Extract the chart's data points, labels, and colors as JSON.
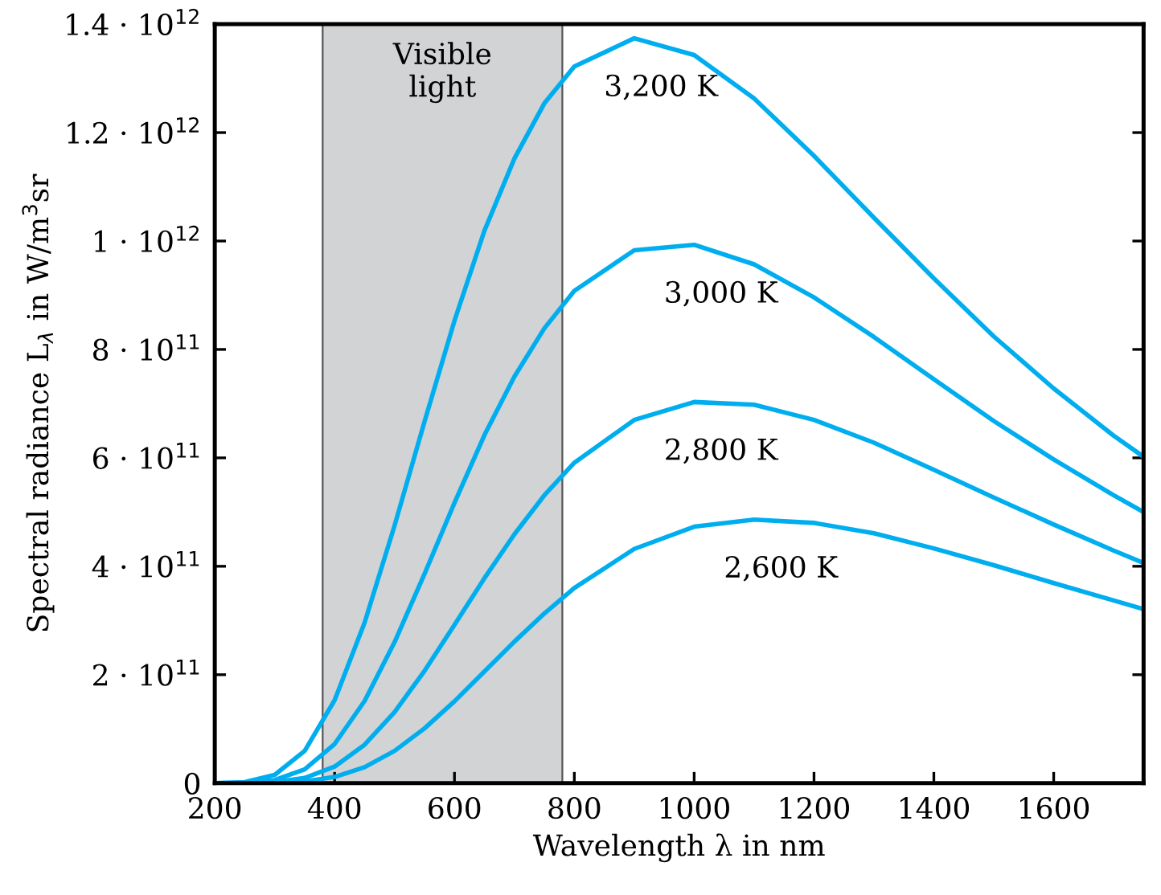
{
  "chart_data": {
    "type": "line",
    "xlabel": "Wavelength λ in nm",
    "ylabel": "Spectral radiance L$_{λ}$ in W/m$^{3}$sr",
    "x": [
      200,
      250,
      300,
      350,
      400,
      450,
      500,
      550,
      600,
      650,
      700,
      750,
      800,
      900,
      1000,
      1100,
      1200,
      1300,
      1400,
      1500,
      1600,
      1700,
      1750
    ],
    "series": [
      {
        "name": "3,200 K",
        "color": "#00aeef",
        "values": [
          0,
          1900000000.0,
          15200000000.0,
          59500000000.0,
          153000000000.0,
          296000000000.0,
          475000000000.0,
          667000000000.0,
          853000000000.0,
          1019000000000.0,
          1152000000000.0,
          1254000000000.0,
          1322000000000.0,
          1374000000000.0,
          1343000000000.0,
          1263000000000.0,
          1157000000000.0,
          1043000000000.0,
          931000000000.0,
          824000000000.0,
          728000000000.0,
          641000000000.0,
          602000000000.0
        ]
      },
      {
        "name": "3,000 K",
        "color": "#00aeef",
        "values": [
          0,
          600000000.0,
          5600000000.0,
          25500000000.0,
          72200000000.0,
          151500000000.0,
          260000000000.0,
          386000000000.0,
          517000000000.0,
          642000000000.0,
          750000000000.0,
          839000000000.0,
          908000000000.0,
          983000000000.0,
          993000000000.0,
          957000000000.0,
          896000000000.0,
          823000000000.0,
          745000000000.0,
          668000000000.0,
          597000000000.0,
          531000000000.0,
          500000000000.0
        ]
      },
      {
        "name": "2,800 K",
        "color": "#00aeef",
        "values": [
          0,
          0,
          1800000000.0,
          9500000000.0,
          30500000000.0,
          70900000000.0,
          131000000000.0,
          207000000000.0,
          292000000000.0,
          378000000000.0,
          459000000000.0,
          531000000000.0,
          591000000000.0,
          670000000000.0,
          703000000000.0,
          698000000000.0,
          670000000000.0,
          628000000000.0,
          578000000000.0,
          527000000000.0,
          477000000000.0,
          429000000000.0,
          406000000000.0
        ]
      },
      {
        "name": "2,600 K",
        "color": "#00aeef",
        "values": [
          0,
          0,
          500000000.0,
          3100000000.0,
          11400000000.0,
          29500000000.0,
          59500000000.0,
          101000000000.0,
          151000000000.0,
          206000000000.0,
          261000000000.0,
          313000000000.0,
          360000000000.0,
          432000000000.0,
          473000000000.0,
          486000000000.0,
          480000000000.0,
          461000000000.0,
          433000000000.0,
          402000000000.0,
          369000000000.0,
          337000000000.0,
          321000000000.0
        ]
      }
    ],
    "xlim": [
      200,
      1750
    ],
    "xticks": [
      200,
      400,
      600,
      800,
      1000,
      1200,
      1400,
      1600
    ],
    "ylim": [
      0,
      1400000000000.0
    ],
    "yticks": [
      0,
      {
        "value": 200000000000.0,
        "label": "2 · 10$^{11}$"
      },
      {
        "value": 400000000000.0,
        "label": "4 · 10$^{11}$"
      },
      {
        "value": 600000000000.0,
        "label": "6 · 10$^{11}$"
      },
      {
        "value": 800000000000.0,
        "label": "8 · 10$^{11}$"
      },
      {
        "value": 1000000000000.0,
        "label": "1 · 10$^{12}$"
      },
      {
        "value": 1200000000000.0,
        "label": "1.2 · 10$^{12}$"
      },
      {
        "value": 1400000000000.0,
        "label": "1.4 · 10$^{12}$"
      }
    ],
    "bands": [
      {
        "axis": "x",
        "from": 380,
        "to": 780,
        "label": "Visible\nlight",
        "color": "#d1d3d5"
      }
    ],
    "grid": false,
    "legend": false,
    "marker": "none",
    "line_style": "solid"
  }
}
